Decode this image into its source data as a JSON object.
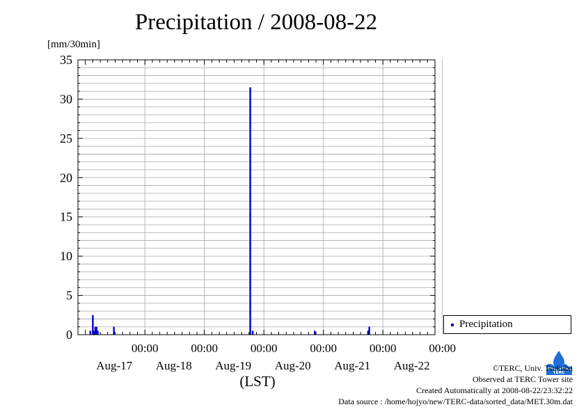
{
  "title": "Precipitation / 2008-08-22",
  "unit_label": "[mm/30min]",
  "legend": {
    "label": "Precipitation",
    "color": "#0000cc"
  },
  "credits": {
    "copyright": "©TERC, Univ. Tsukuba",
    "site": "Observed at TERC Tower site",
    "created": "Created Automatically at 2008-08-22/23:32:22",
    "source": "Data source : /home/hojyo/new/TERC-data/sorted_data/MET.30m.dat"
  },
  "logo": {
    "icon": "terc-logo-icon",
    "text": "TERC",
    "color": "#1f6fd6"
  },
  "chart_data": {
    "type": "bar",
    "title": "Precipitation / 2008-08-22",
    "ylabel": "[mm/30min]",
    "xlabel": "(LST)",
    "ylim": [
      0,
      35
    ],
    "y_major_ticks": [
      0,
      5,
      10,
      15,
      20,
      25,
      30,
      35
    ],
    "y_minor_step": 1,
    "grid": true,
    "legend_position": "right",
    "x_range_days": [
      "Aug-16 21:00",
      "Aug-22 21:00"
    ],
    "x_tick_labels": [
      {
        "time": "00:00",
        "date": "Aug-17",
        "day": 1
      },
      {
        "time": "00:00",
        "date": "Aug-18",
        "day": 2
      },
      {
        "time": "00:00",
        "date": "Aug-19",
        "day": 3
      },
      {
        "time": "00:00",
        "date": "Aug-20",
        "day": 4
      },
      {
        "time": "00:00",
        "date": "Aug-21",
        "day": 5
      },
      {
        "time": "00:00",
        "date": "Aug-22",
        "day": 6
      }
    ],
    "series": [
      {
        "name": "Precipitation",
        "color": "#0000cc",
        "points": [
          {
            "t": "Aug-17 02:00",
            "v": 0.5
          },
          {
            "t": "Aug-17 03:00",
            "v": 2.5
          },
          {
            "t": "Aug-17 03:30",
            "v": 0.5
          },
          {
            "t": "Aug-17 04:00",
            "v": 1.0
          },
          {
            "t": "Aug-17 04:30",
            "v": 1.0
          },
          {
            "t": "Aug-17 05:00",
            "v": 0.5
          },
          {
            "t": "Aug-17 11:30",
            "v": 1.0
          },
          {
            "t": "Aug-19 18:30",
            "v": 31.5
          },
          {
            "t": "Aug-19 19:30",
            "v": 0.5
          },
          {
            "t": "Aug-20 20:30",
            "v": 0.5
          },
          {
            "t": "Aug-21 18:00",
            "v": 0.5
          },
          {
            "t": "Aug-21 18:30",
            "v": 1.0
          }
        ]
      }
    ]
  }
}
